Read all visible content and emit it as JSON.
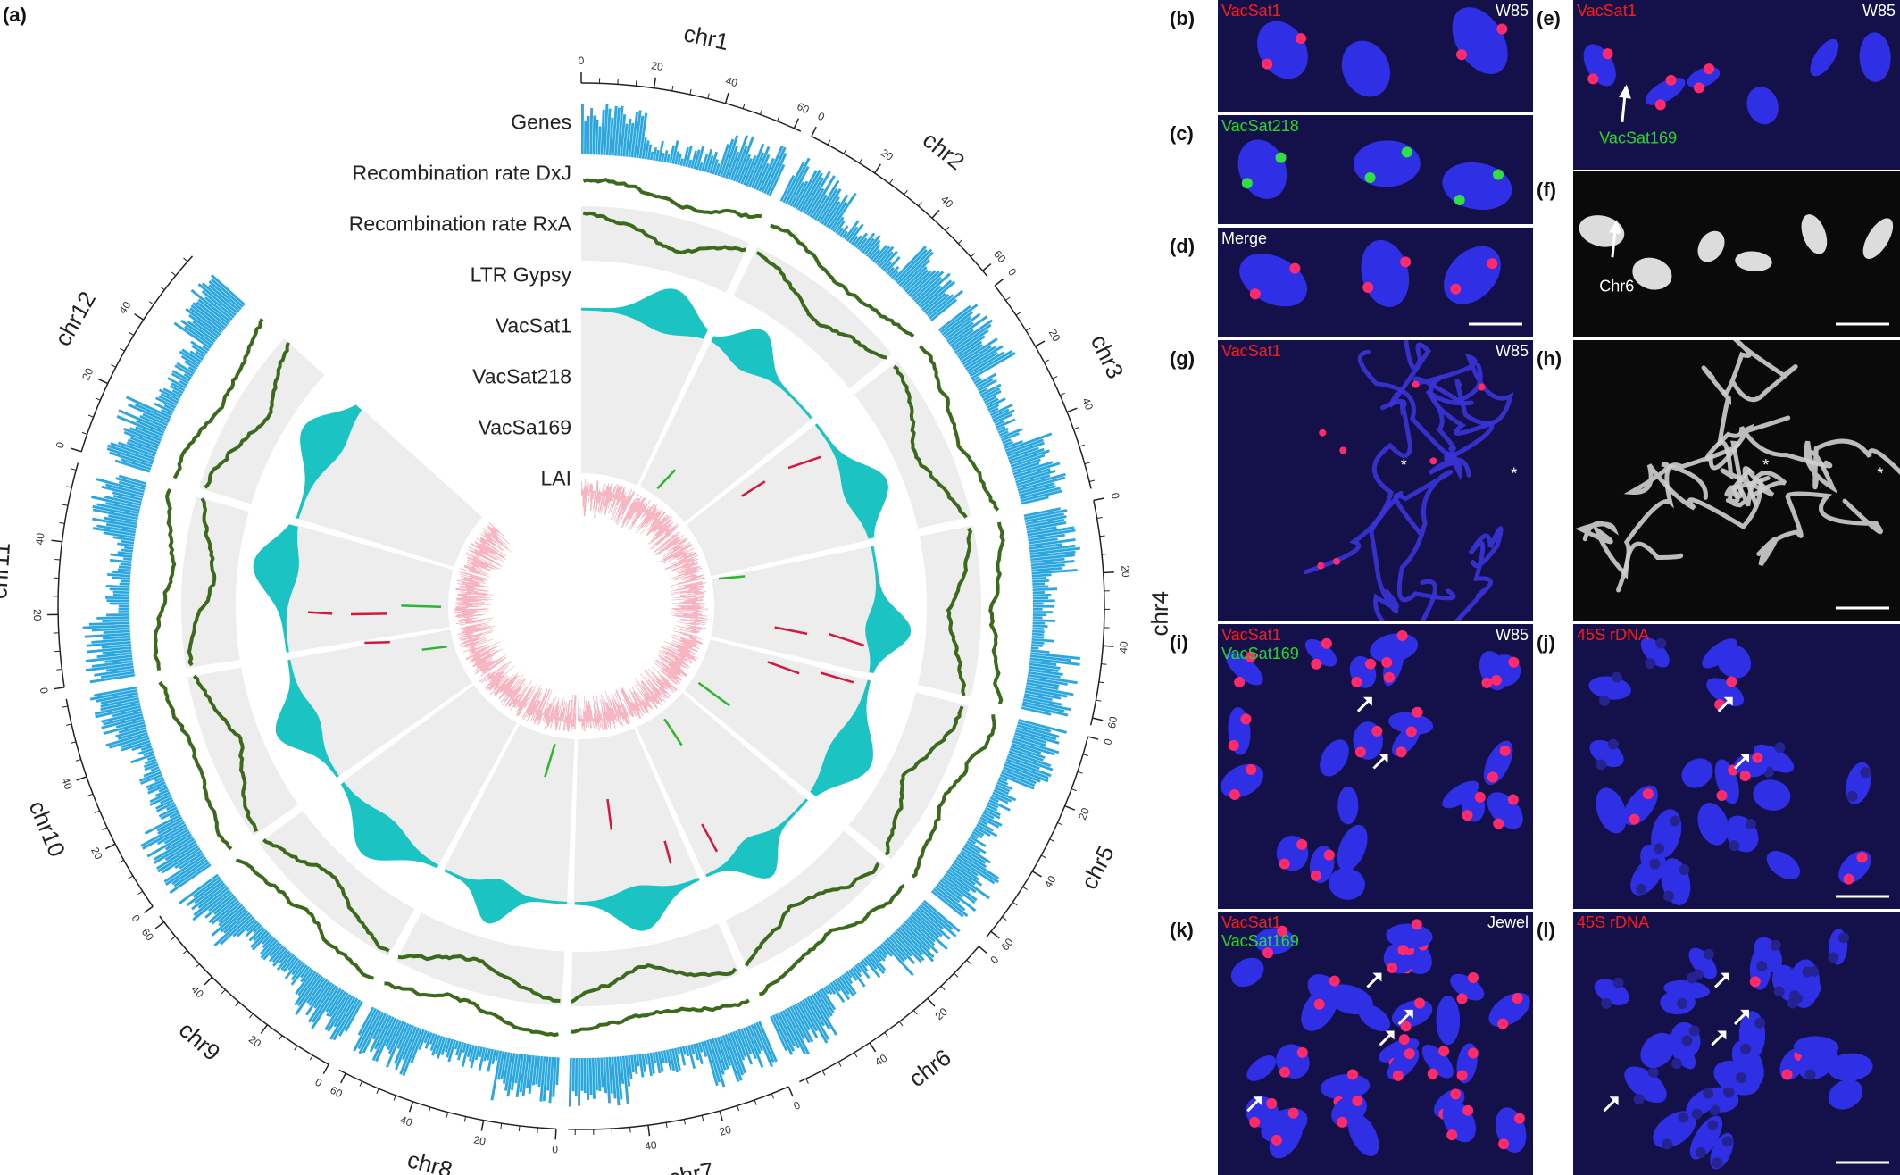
{
  "panel_a": {
    "label": "(a)",
    "tracks": [
      "Genes",
      "Recombination rate DxJ",
      "Recombination rate RxA",
      "LTR Gypsy",
      "VacSat1",
      "VacSat218",
      "VacSa169",
      "LAI"
    ],
    "chromosomes": [
      {
        "name": "chr1",
        "ticks": [
          0,
          20,
          40,
          60
        ]
      },
      {
        "name": "chr2",
        "ticks": [
          0,
          20,
          40,
          60
        ]
      },
      {
        "name": "chr3",
        "ticks": [
          0,
          20,
          40
        ]
      },
      {
        "name": "chr4",
        "ticks": [
          0,
          20,
          40,
          60
        ]
      },
      {
        "name": "chr5",
        "ticks": [
          0,
          20,
          40,
          60
        ]
      },
      {
        "name": "chr6",
        "ticks": [
          0,
          20,
          40
        ]
      },
      {
        "name": "chr7",
        "ticks": [
          0,
          20,
          40
        ]
      },
      {
        "name": "chr8",
        "ticks": [
          0,
          20,
          40,
          60
        ]
      },
      {
        "name": "chr9",
        "ticks": [
          0,
          20,
          40,
          60
        ]
      },
      {
        "name": "chr10",
        "ticks": [
          0,
          20,
          40
        ]
      },
      {
        "name": "chr11",
        "ticks": [
          0,
          20,
          40
        ]
      },
      {
        "name": "chr12",
        "ticks": [
          0,
          20,
          40
        ]
      }
    ]
  },
  "panels": [
    {
      "label": "(b)",
      "left": [
        {
          "text": "VacSat1",
          "color": "#ff1a1a"
        }
      ],
      "right": "W85"
    },
    {
      "label": "(c)",
      "left": [
        {
          "text": "VacSat218",
          "color": "#22dd22"
        }
      ]
    },
    {
      "label": "(d)",
      "left": [
        {
          "text": "Merge",
          "color": "#ffffff"
        }
      ],
      "scale_bar": true
    },
    {
      "label": "(e)",
      "left": [
        {
          "text": "VacSat1",
          "color": "#ff1a1a"
        }
      ],
      "right": "W85",
      "callout": {
        "text": "VacSat169",
        "color": "#22dd22"
      }
    },
    {
      "label": "(f)",
      "grayscale": true,
      "callout": {
        "text": "Chr6",
        "color": "#ffffff"
      },
      "scale_bar": true
    },
    {
      "label": "(g)",
      "left": [
        {
          "text": "VacSat1",
          "color": "#ff1a1a"
        }
      ],
      "right": "W85",
      "star": "*"
    },
    {
      "label": "(h)",
      "grayscale": true,
      "star": "*",
      "scale_bar": true
    },
    {
      "label": "(i)",
      "left": [
        {
          "text": "VacSat1",
          "color": "#ff1a1a"
        },
        {
          "text": "VacSat169",
          "color": "#22dd22"
        }
      ],
      "right": "W85"
    },
    {
      "label": "(j)",
      "left": [
        {
          "text": "45S rDNA",
          "color": "#ff1a1a"
        }
      ],
      "scale_bar": true
    },
    {
      "label": "(k)",
      "left": [
        {
          "text": "VacSat1",
          "color": "#ff1a1a"
        },
        {
          "text": "VacSat169",
          "color": "#22dd22"
        }
      ],
      "right": "Jewel"
    },
    {
      "label": "(l)",
      "left": [
        {
          "text": "45S rDNA",
          "color": "#ff1a1a"
        }
      ],
      "scale_bar": true
    }
  ]
}
